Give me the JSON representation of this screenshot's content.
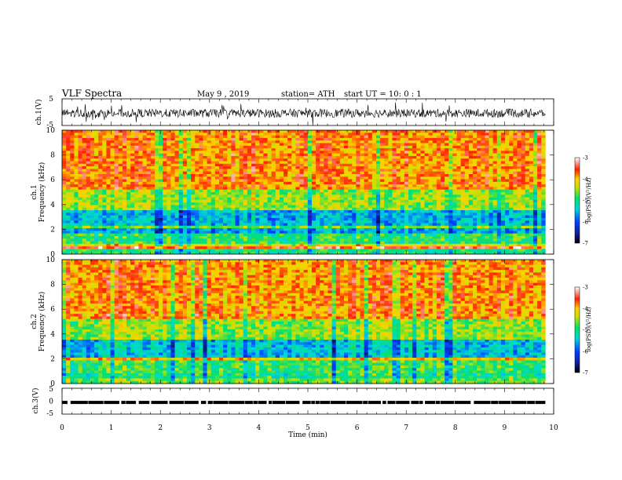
{
  "header": {
    "title": "VLF  Spectra",
    "date": "May 9  , 2019",
    "station": "station= ATH",
    "start": "start  UT  =    10: 0   : 1"
  },
  "chart_data": [
    {
      "id": "ch1-waveform",
      "type": "line",
      "ylabel": "ch.1(V)",
      "ylim": [
        -5,
        5
      ],
      "yticks": [
        "5",
        "-5"
      ],
      "xlim": [
        0,
        10
      ],
      "data_end_min": 9.83,
      "series": [
        {
          "mean": -0.4,
          "noise_amplitude": 1.6
        }
      ]
    },
    {
      "id": "ch1-spectrogram",
      "type": "heatmap",
      "ylabel": "ch.1",
      "ylabel2": "Frequency  (kHz)",
      "ylim": [
        0,
        10
      ],
      "yticks": [
        "0",
        "2",
        "4",
        "6",
        "8",
        "10"
      ],
      "xlim": [
        0,
        10
      ],
      "data_end_min": 9.83,
      "colorbar": {
        "label": "log(PSD)(V²/Hz)",
        "range": [
          -7,
          -3
        ],
        "ticks": [
          "-3",
          "-4",
          "-5",
          "-6",
          "-7"
        ]
      },
      "bands_logpsd": [
        {
          "f": [
            0.0,
            0.35
          ],
          "level": -5.0
        },
        {
          "f": [
            0.35,
            0.55
          ],
          "level": -3.5
        },
        {
          "f": [
            0.55,
            0.8
          ],
          "level": -4.2
        },
        {
          "f": [
            0.8,
            1.6
          ],
          "level": -4.9
        },
        {
          "f": [
            1.6,
            2.0
          ],
          "level": -5.6
        },
        {
          "f": [
            2.0,
            2.3
          ],
          "level": -4.7
        },
        {
          "f": [
            2.3,
            3.5
          ],
          "level": -5.5
        },
        {
          "f": [
            3.5,
            5.2
          ],
          "level": -4.5
        },
        {
          "f": [
            5.2,
            10.0
          ],
          "level": -3.8
        }
      ]
    },
    {
      "id": "ch2-spectrogram",
      "type": "heatmap",
      "ylabel": "ch.2",
      "ylabel2": "Frequency  (kHz)",
      "ylim": [
        0,
        10
      ],
      "yticks": [
        "0",
        "2",
        "4",
        "6",
        "8",
        "10"
      ],
      "xlim": [
        0,
        10
      ],
      "data_end_min": 9.83,
      "colorbar": {
        "label": "log(PSD)(V²/Hz)",
        "range": [
          -7,
          -3
        ],
        "ticks": [
          "-3",
          "-4",
          "-5",
          "-6",
          "-7"
        ]
      },
      "bands_logpsd": [
        {
          "f": [
            0.0,
            0.4
          ],
          "level": -4.6
        },
        {
          "f": [
            0.4,
            0.8
          ],
          "level": -5.0
        },
        {
          "f": [
            0.8,
            1.8
          ],
          "level": -4.8
        },
        {
          "f": [
            1.8,
            2.1
          ],
          "level": -4.0
        },
        {
          "f": [
            2.1,
            3.6
          ],
          "level": -5.4
        },
        {
          "f": [
            3.6,
            5.3
          ],
          "level": -4.5
        },
        {
          "f": [
            5.3,
            10.0
          ],
          "level": -3.8
        }
      ]
    },
    {
      "id": "ch3-waveform",
      "type": "line",
      "ylabel": "ch.3(V)",
      "ylim": [
        -5,
        5
      ],
      "yticks": [
        "5",
        "0",
        "-5"
      ],
      "xlim": [
        0,
        10
      ],
      "xticks": [
        "0",
        "1",
        "2",
        "3",
        "4",
        "5",
        "6",
        "7",
        "8",
        "9",
        "10"
      ],
      "xlabel": "Time  (min)",
      "data_end_min": 9.83,
      "series": [
        {
          "level": -0.5
        }
      ]
    }
  ]
}
